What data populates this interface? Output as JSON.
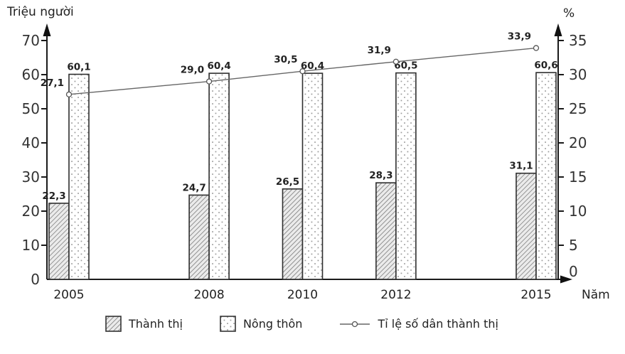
{
  "chart_data": {
    "type": "bar",
    "subtype": "grouped-bars-with-line-overlay",
    "categories": [
      "2005",
      "2008",
      "2010",
      "2012",
      "2015"
    ],
    "series": [
      {
        "name": "Thành thị",
        "type": "bar",
        "axis": "left",
        "pattern": "diagonal-hatch",
        "values": [
          22.3,
          24.7,
          26.5,
          28.3,
          31.1
        ],
        "labels": [
          "22,3",
          "24,7",
          "26,5",
          "28,3",
          "31,1"
        ]
      },
      {
        "name": "Nông thôn",
        "type": "bar",
        "axis": "left",
        "pattern": "dots",
        "values": [
          60.1,
          60.4,
          60.4,
          60.5,
          60.6
        ],
        "labels": [
          "60,1",
          "60,4",
          "60,4",
          "60,5",
          "60,6"
        ]
      },
      {
        "name": "Tỉ lệ số dân thành thị",
        "type": "line",
        "axis": "right",
        "marker": "open-circle",
        "values": [
          27.1,
          29.0,
          30.5,
          31.9,
          33.9
        ],
        "labels": [
          "27,1",
          "29,0",
          "30,5",
          "31,9",
          "33,9"
        ]
      }
    ],
    "left_axis": {
      "title": "Triệu người",
      "min": 0,
      "max": 70,
      "step": 10,
      "tick_labels": [
        "0",
        "10",
        "20",
        "30",
        "40",
        "50",
        "60",
        "70"
      ]
    },
    "right_axis": {
      "title": "%",
      "min": 0,
      "max": 35,
      "step": 5,
      "tick_labels": [
        "0",
        "5",
        "10",
        "15",
        "20",
        "25",
        "30",
        "35"
      ]
    },
    "x_axis": {
      "title": "Năm"
    },
    "grid": false,
    "legend_position": "bottom",
    "colors": {
      "background": "#ffffff",
      "ink": "#1a1a1a",
      "text": "#333333",
      "bar_outline": "#2e2e2e",
      "hatch_bg": "#ebebeb",
      "hatch_line": "#7d7d7d",
      "dot_color": "#9a9a9a",
      "line_series": "#666666"
    }
  }
}
